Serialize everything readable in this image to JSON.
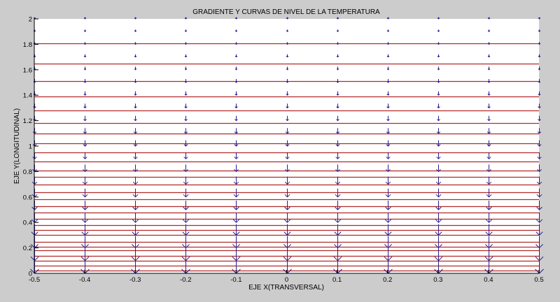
{
  "chart_data": {
    "type": "quiver+contour",
    "title": "GRADIENTE Y CURVAS DE NIVEL DE LA TEMPERATURA",
    "xlabel": "EJE X(TRANSVERSAL)",
    "ylabel": "EJE Y(LONGITUDINAL)",
    "xlim": [
      -0.5,
      0.5
    ],
    "ylim": [
      0,
      2
    ],
    "xticks": [
      "-0.5",
      "-0.4",
      "-0.3",
      "-0.2",
      "-0.1",
      "0",
      "0.1",
      "0.2",
      "0.3",
      "0.4",
      "0.5"
    ],
    "yticks": [
      "0",
      "0.2",
      "0.4",
      "0.6",
      "0.8",
      "1",
      "1.2",
      "1.4",
      "1.6",
      "1.8",
      "2"
    ],
    "grid": false,
    "contour_color": "#b22a2a",
    "arrow_color": "#2a1f8f",
    "contour_levels_y": [
      1.81,
      1.65,
      1.51,
      1.39,
      1.28,
      1.18,
      1.1,
      1.02,
      0.95,
      0.88,
      0.81,
      0.76,
      0.7,
      0.64,
      0.58,
      0.53,
      0.48,
      0.43,
      0.38,
      0.34,
      0.3,
      0.25,
      0.21,
      0.18,
      0.14,
      0.1,
      0.06,
      0.02
    ],
    "quiver": {
      "x": [
        -0.5,
        -0.4,
        -0.3,
        -0.2,
        -0.1,
        0,
        0.1,
        0.2,
        0.3,
        0.4,
        0.5
      ],
      "y": [
        0,
        0.1,
        0.2,
        0.3,
        0.4,
        0.5,
        0.6,
        0.7,
        0.8,
        0.9,
        1.0,
        1.1,
        1.2,
        1.3,
        1.4,
        1.5,
        1.6,
        1.7,
        1.8,
        1.9,
        2.0
      ],
      "u": 0,
      "v_direction": "down",
      "relative_length_by_row": [
        1.0,
        0.92,
        0.85,
        0.78,
        0.71,
        0.65,
        0.6,
        0.55,
        0.5,
        0.46,
        0.42,
        0.38,
        0.34,
        0.31,
        0.28,
        0.25,
        0.22,
        0.19,
        0.16,
        0.14,
        0.12
      ]
    }
  }
}
